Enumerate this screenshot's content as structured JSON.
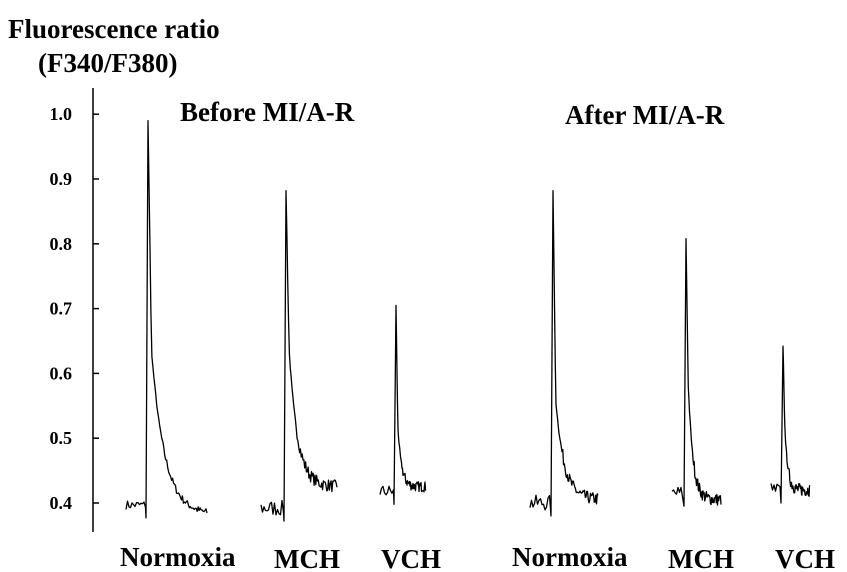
{
  "chart_data": {
    "type": "line",
    "ylabel_line1": "Fluorescence ratio",
    "ylabel_line2": "(F340/F380)",
    "ylim": [
      0.37,
      1.04
    ],
    "yticks": [
      1.0,
      0.9,
      0.8,
      0.7,
      0.6,
      0.5,
      0.4
    ],
    "ytick_labels": [
      "1.0",
      "0.9",
      "0.8",
      "0.7",
      "0.6",
      "0.5",
      "0.4"
    ],
    "grid": false,
    "panels": [
      {
        "title": "Before MI/A-R",
        "traces": [
          {
            "category": "Normoxia",
            "baseline": 0.397,
            "peak": 0.99,
            "shoulder": 0.635,
            "tail": 0.382
          },
          {
            "category": "MCH",
            "baseline": 0.392,
            "peak": 0.882,
            "shoulder": 0.638,
            "tail": 0.425
          },
          {
            "category": "VCH",
            "baseline": 0.418,
            "peak": 0.705,
            "shoulder": 0.52,
            "tail": 0.425
          }
        ]
      },
      {
        "title": "After MI/A-R",
        "traces": [
          {
            "category": "Normoxia",
            "baseline": 0.4,
            "peak": 0.882,
            "shoulder": 0.56,
            "tail": 0.405
          },
          {
            "category": "MCH",
            "baseline": 0.415,
            "peak": 0.808,
            "shoulder": 0.59,
            "tail": 0.405
          },
          {
            "category": "VCH",
            "baseline": 0.42,
            "peak": 0.642,
            "shoulder": 0.525,
            "tail": 0.42
          }
        ]
      }
    ]
  }
}
